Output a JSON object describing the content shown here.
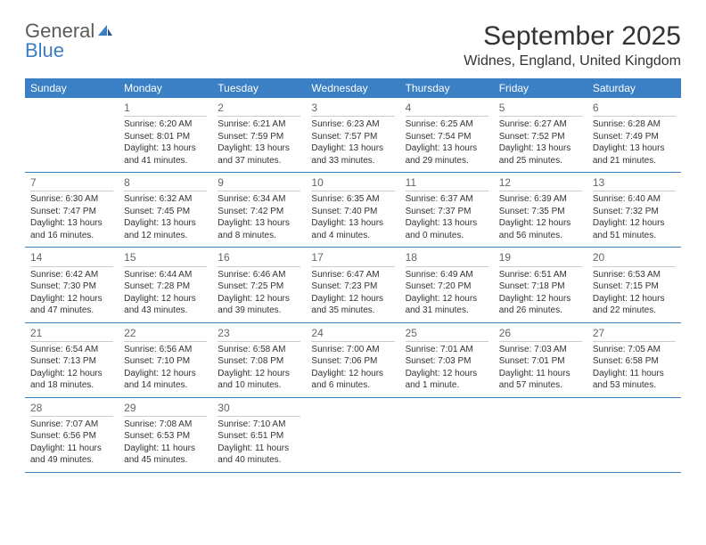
{
  "logo": {
    "line1": "General",
    "line2": "Blue"
  },
  "title": "September 2025",
  "location": "Widnes, England, United Kingdom",
  "colors": {
    "header_bg": "#3b7fc4",
    "header_text": "#ffffff",
    "divider": "#3b7fc4",
    "day_divider": "#cccccc",
    "body_text": "#333333",
    "day_number": "#666666",
    "logo_gray": "#5a5a5a",
    "logo_blue": "#3b7fc4",
    "background": "#ffffff"
  },
  "typography": {
    "title_fontsize": 30,
    "location_fontsize": 16,
    "weekday_fontsize": 12,
    "daynum_fontsize": 12,
    "body_fontsize": 10,
    "font_family": "Arial"
  },
  "weekdays": [
    "Sunday",
    "Monday",
    "Tuesday",
    "Wednesday",
    "Thursday",
    "Friday",
    "Saturday"
  ],
  "weeks": [
    [
      null,
      {
        "n": "1",
        "sr": "6:20 AM",
        "ss": "8:01 PM",
        "dl": "Daylight: 13 hours and 41 minutes."
      },
      {
        "n": "2",
        "sr": "6:21 AM",
        "ss": "7:59 PM",
        "dl": "Daylight: 13 hours and 37 minutes."
      },
      {
        "n": "3",
        "sr": "6:23 AM",
        "ss": "7:57 PM",
        "dl": "Daylight: 13 hours and 33 minutes."
      },
      {
        "n": "4",
        "sr": "6:25 AM",
        "ss": "7:54 PM",
        "dl": "Daylight: 13 hours and 29 minutes."
      },
      {
        "n": "5",
        "sr": "6:27 AM",
        "ss": "7:52 PM",
        "dl": "Daylight: 13 hours and 25 minutes."
      },
      {
        "n": "6",
        "sr": "6:28 AM",
        "ss": "7:49 PM",
        "dl": "Daylight: 13 hours and 21 minutes."
      }
    ],
    [
      {
        "n": "7",
        "sr": "6:30 AM",
        "ss": "7:47 PM",
        "dl": "Daylight: 13 hours and 16 minutes."
      },
      {
        "n": "8",
        "sr": "6:32 AM",
        "ss": "7:45 PM",
        "dl": "Daylight: 13 hours and 12 minutes."
      },
      {
        "n": "9",
        "sr": "6:34 AM",
        "ss": "7:42 PM",
        "dl": "Daylight: 13 hours and 8 minutes."
      },
      {
        "n": "10",
        "sr": "6:35 AM",
        "ss": "7:40 PM",
        "dl": "Daylight: 13 hours and 4 minutes."
      },
      {
        "n": "11",
        "sr": "6:37 AM",
        "ss": "7:37 PM",
        "dl": "Daylight: 13 hours and 0 minutes."
      },
      {
        "n": "12",
        "sr": "6:39 AM",
        "ss": "7:35 PM",
        "dl": "Daylight: 12 hours and 56 minutes."
      },
      {
        "n": "13",
        "sr": "6:40 AM",
        "ss": "7:32 PM",
        "dl": "Daylight: 12 hours and 51 minutes."
      }
    ],
    [
      {
        "n": "14",
        "sr": "6:42 AM",
        "ss": "7:30 PM",
        "dl": "Daylight: 12 hours and 47 minutes."
      },
      {
        "n": "15",
        "sr": "6:44 AM",
        "ss": "7:28 PM",
        "dl": "Daylight: 12 hours and 43 minutes."
      },
      {
        "n": "16",
        "sr": "6:46 AM",
        "ss": "7:25 PM",
        "dl": "Daylight: 12 hours and 39 minutes."
      },
      {
        "n": "17",
        "sr": "6:47 AM",
        "ss": "7:23 PM",
        "dl": "Daylight: 12 hours and 35 minutes."
      },
      {
        "n": "18",
        "sr": "6:49 AM",
        "ss": "7:20 PM",
        "dl": "Daylight: 12 hours and 31 minutes."
      },
      {
        "n": "19",
        "sr": "6:51 AM",
        "ss": "7:18 PM",
        "dl": "Daylight: 12 hours and 26 minutes."
      },
      {
        "n": "20",
        "sr": "6:53 AM",
        "ss": "7:15 PM",
        "dl": "Daylight: 12 hours and 22 minutes."
      }
    ],
    [
      {
        "n": "21",
        "sr": "6:54 AM",
        "ss": "7:13 PM",
        "dl": "Daylight: 12 hours and 18 minutes."
      },
      {
        "n": "22",
        "sr": "6:56 AM",
        "ss": "7:10 PM",
        "dl": "Daylight: 12 hours and 14 minutes."
      },
      {
        "n": "23",
        "sr": "6:58 AM",
        "ss": "7:08 PM",
        "dl": "Daylight: 12 hours and 10 minutes."
      },
      {
        "n": "24",
        "sr": "7:00 AM",
        "ss": "7:06 PM",
        "dl": "Daylight: 12 hours and 6 minutes."
      },
      {
        "n": "25",
        "sr": "7:01 AM",
        "ss": "7:03 PM",
        "dl": "Daylight: 12 hours and 1 minute."
      },
      {
        "n": "26",
        "sr": "7:03 AM",
        "ss": "7:01 PM",
        "dl": "Daylight: 11 hours and 57 minutes."
      },
      {
        "n": "27",
        "sr": "7:05 AM",
        "ss": "6:58 PM",
        "dl": "Daylight: 11 hours and 53 minutes."
      }
    ],
    [
      {
        "n": "28",
        "sr": "7:07 AM",
        "ss": "6:56 PM",
        "dl": "Daylight: 11 hours and 49 minutes."
      },
      {
        "n": "29",
        "sr": "7:08 AM",
        "ss": "6:53 PM",
        "dl": "Daylight: 11 hours and 45 minutes."
      },
      {
        "n": "30",
        "sr": "7:10 AM",
        "ss": "6:51 PM",
        "dl": "Daylight: 11 hours and 40 minutes."
      },
      null,
      null,
      null,
      null
    ]
  ],
  "labels": {
    "sunrise_prefix": "Sunrise: ",
    "sunset_prefix": "Sunset: "
  }
}
